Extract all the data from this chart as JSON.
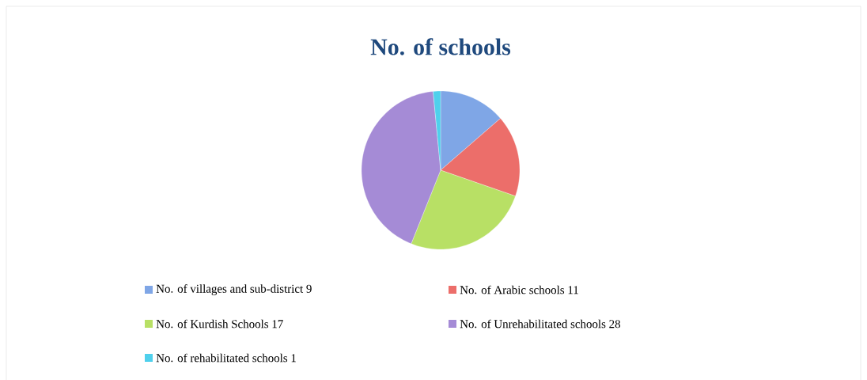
{
  "chart_data": {
    "type": "pie",
    "title": "No. of schools",
    "categories": [
      "No. of villages and sub-district  9",
      "No. of Arabic schools 11",
      "No. of Kurdish Schools 17",
      "No. of  Unrehabilitated schools 28",
      "No. of rehabilitated schools 1"
    ],
    "values": [
      9,
      11,
      17,
      28,
      1
    ],
    "colors": [
      "#7fa6e6",
      "#ec6e6a",
      "#b8e065",
      "#a58bd6",
      "#4fd0ec"
    ],
    "legend": "bottom"
  }
}
